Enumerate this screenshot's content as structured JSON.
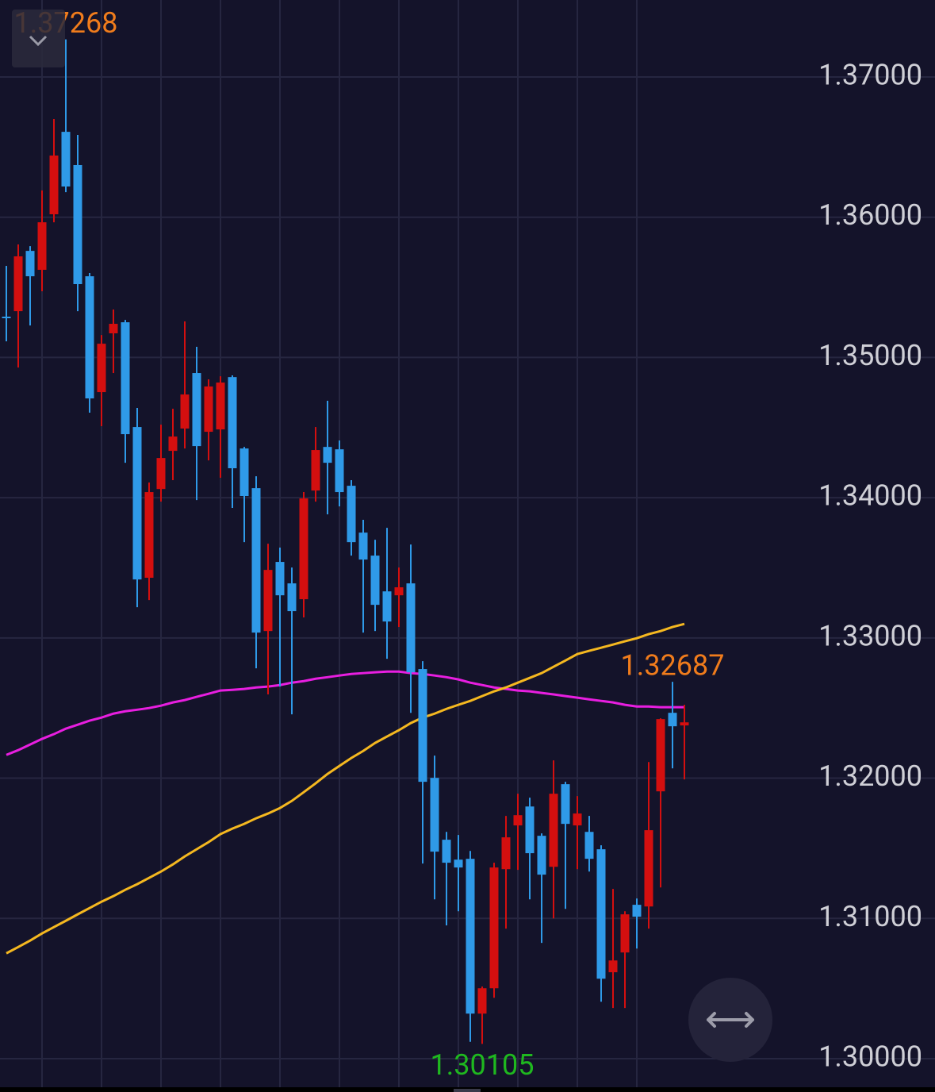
{
  "chart_data": {
    "type": "candlestick",
    "up_color": "#d40f0f",
    "down_color": "#2f9ae8",
    "open": [
      1.35291,
      1.3533,
      1.3576,
      1.35625,
      1.36021,
      1.36609,
      1.36372,
      1.35579,
      1.34753,
      1.35172,
      1.35251,
      1.34504,
      1.33429,
      1.34062,
      1.34334,
      1.34493,
      1.34889,
      1.3447,
      1.34487,
      1.3486,
      1.34351,
      1.34068,
      1.33049,
      1.33542,
      1.33389,
      1.33276,
      1.34051,
      1.34362,
      1.34345,
      1.34085,
      1.33751,
      1.33587,
      1.33332,
      1.33304,
      1.33389,
      1.32778,
      1.32002,
      1.31561,
      1.31419,
      1.31425,
      1.30321,
      1.30502,
      1.31351,
      1.31663,
      1.31798,
      1.31589,
      1.31368,
      1.31957,
      1.31663,
      1.31617,
      1.31493,
      1.30616,
      1.30757,
      1.31097,
      1.31085,
      1.31906,
      1.32466,
      1.32376
    ],
    "high": [
      1.35653,
      1.35806,
      1.35794,
      1.36191,
      1.367,
      1.37268,
      1.36587,
      1.35602,
      1.3516,
      1.35342,
      1.35268,
      1.3464,
      1.34108,
      1.34521,
      1.34634,
      1.35257,
      1.35076,
      1.34844,
      1.34866,
      1.34872,
      1.34362,
      1.34153,
      1.33672,
      1.33644,
      1.33502,
      1.3404,
      1.34504,
      1.34691,
      1.34408,
      1.34125,
      1.33842,
      1.337,
      1.33785,
      1.33502,
      1.33666,
      1.32834,
      1.32161,
      1.31617,
      1.31595,
      1.31481,
      1.30514,
      1.31397,
      1.31731,
      1.31889,
      1.31861,
      1.31606,
      1.32127,
      1.31974,
      1.31872,
      1.31731,
      1.31521,
      1.3121,
      1.31051,
      1.31142,
      1.32115,
      1.32427,
      1.32687,
      1.32523
    ],
    "low": [
      1.35115,
      1.34928,
      1.35228,
      1.35472,
      1.35964,
      1.36179,
      1.3533,
      1.34606,
      1.3451,
      1.34889,
      1.34249,
      1.33219,
      1.3327,
      1.33972,
      1.34125,
      1.34351,
      1.33983,
      1.34266,
      1.34142,
      1.33927,
      1.33683,
      1.32783,
      1.32597,
      1.32653,
      1.32455,
      1.33146,
      1.33972,
      1.33881,
      1.33938,
      1.33587,
      1.33038,
      1.33049,
      1.32851,
      1.33078,
      1.32466,
      1.31391,
      1.31136,
      1.3095,
      1.31051,
      1.3012,
      1.30105,
      1.30434,
      1.30927,
      1.31346,
      1.31136,
      1.30825,
      1.31,
      1.31068,
      1.31351,
      1.31334,
      1.30406,
      1.30361,
      1.30361,
      1.30785,
      1.30927,
      1.31221,
      1.3207,
      1.31991
    ],
    "close": [
      1.35285,
      1.35721,
      1.35579,
      1.35964,
      1.3644,
      1.36219,
      1.35523,
      1.34708,
      1.35098,
      1.3524,
      1.34453,
      1.33417,
      1.3404,
      1.34283,
      1.34436,
      1.34736,
      1.34368,
      1.34793,
      1.34821,
      1.3421,
      1.34012,
      1.33038,
      1.33485,
      1.33304,
      1.33191,
      1.33995,
      1.3434,
      1.34249,
      1.3404,
      1.33683,
      1.33559,
      1.33236,
      1.33117,
      1.33361,
      1.32755,
      1.31974,
      1.31476,
      1.31397,
      1.31363,
      1.30321,
      1.30502,
      1.31363,
      1.31578,
      1.31736,
      1.31465,
      1.31312,
      1.31889,
      1.31674,
      1.31748,
      1.31425,
      1.3057,
      1.307,
      1.31029,
      1.31012,
      1.31629,
      1.32421,
      1.3237,
      1.32398
    ],
    "series": [
      {
        "color": "#e81ee0",
        "values": [
          1.32166,
          1.322,
          1.3224,
          1.3228,
          1.32314,
          1.32353,
          1.32381,
          1.3241,
          1.32432,
          1.3246,
          1.32477,
          1.32488,
          1.325,
          1.32517,
          1.3254,
          1.32557,
          1.3258,
          1.32602,
          1.32625,
          1.3263,
          1.32636,
          1.32647,
          1.32653,
          1.32664,
          1.32681,
          1.32692,
          1.32709,
          1.3272,
          1.32732,
          1.32743,
          1.32749,
          1.32755,
          1.3276,
          1.3276,
          1.32749,
          1.32743,
          1.32732,
          1.3272,
          1.32704,
          1.32681,
          1.32664,
          1.32647,
          1.32636,
          1.32625,
          1.32619,
          1.32608,
          1.32597,
          1.32585,
          1.32574,
          1.32562,
          1.32551,
          1.3254,
          1.32523,
          1.32511,
          1.32511,
          1.32506,
          1.32506,
          1.32506
        ]
      },
      {
        "color": "#f5b820",
        "values": [
          1.30751,
          1.30796,
          1.30842,
          1.30893,
          1.30938,
          1.30983,
          1.31029,
          1.31074,
          1.31119,
          1.31159,
          1.31204,
          1.31244,
          1.31289,
          1.31334,
          1.31385,
          1.31442,
          1.31493,
          1.31544,
          1.31601,
          1.3164,
          1.31674,
          1.31714,
          1.31748,
          1.31787,
          1.31838,
          1.319,
          1.31963,
          1.3203,
          1.32087,
          1.32144,
          1.32194,
          1.32251,
          1.32297,
          1.32342,
          1.32393,
          1.32432,
          1.3246,
          1.32494,
          1.32523,
          1.32551,
          1.32585,
          1.32619,
          1.32647,
          1.32681,
          1.32715,
          1.32749,
          1.32794,
          1.32839,
          1.32885,
          1.32908,
          1.3293,
          1.32953,
          1.32976,
          1.32998,
          1.33027,
          1.33049,
          1.33078,
          1.331
        ]
      }
    ],
    "annotations": [
      {
        "value": 1.37268,
        "label": "1.37268",
        "color": "#f07c1c",
        "index": 5,
        "side": "above"
      },
      {
        "value": 1.32687,
        "label": "1.32687",
        "color": "#f07c1c",
        "index": 56,
        "side": "above"
      },
      {
        "value": 1.30105,
        "label": "1.30105",
        "color": "#1fb81f",
        "index": 40,
        "side": "below"
      }
    ],
    "ylim": [
      1.29796,
      1.37549
    ],
    "yticks": [
      {
        "value": 1.3,
        "label": "1.30000"
      },
      {
        "value": 1.31,
        "label": "1.31000"
      },
      {
        "value": 1.32,
        "label": "1.32000"
      },
      {
        "value": 1.33,
        "label": "1.33000"
      },
      {
        "value": 1.34,
        "label": "1.34000"
      },
      {
        "value": 1.35,
        "label": "1.35000"
      },
      {
        "value": 1.36,
        "label": "1.36000"
      },
      {
        "value": 1.37,
        "label": "1.37000"
      }
    ],
    "grid": true
  }
}
